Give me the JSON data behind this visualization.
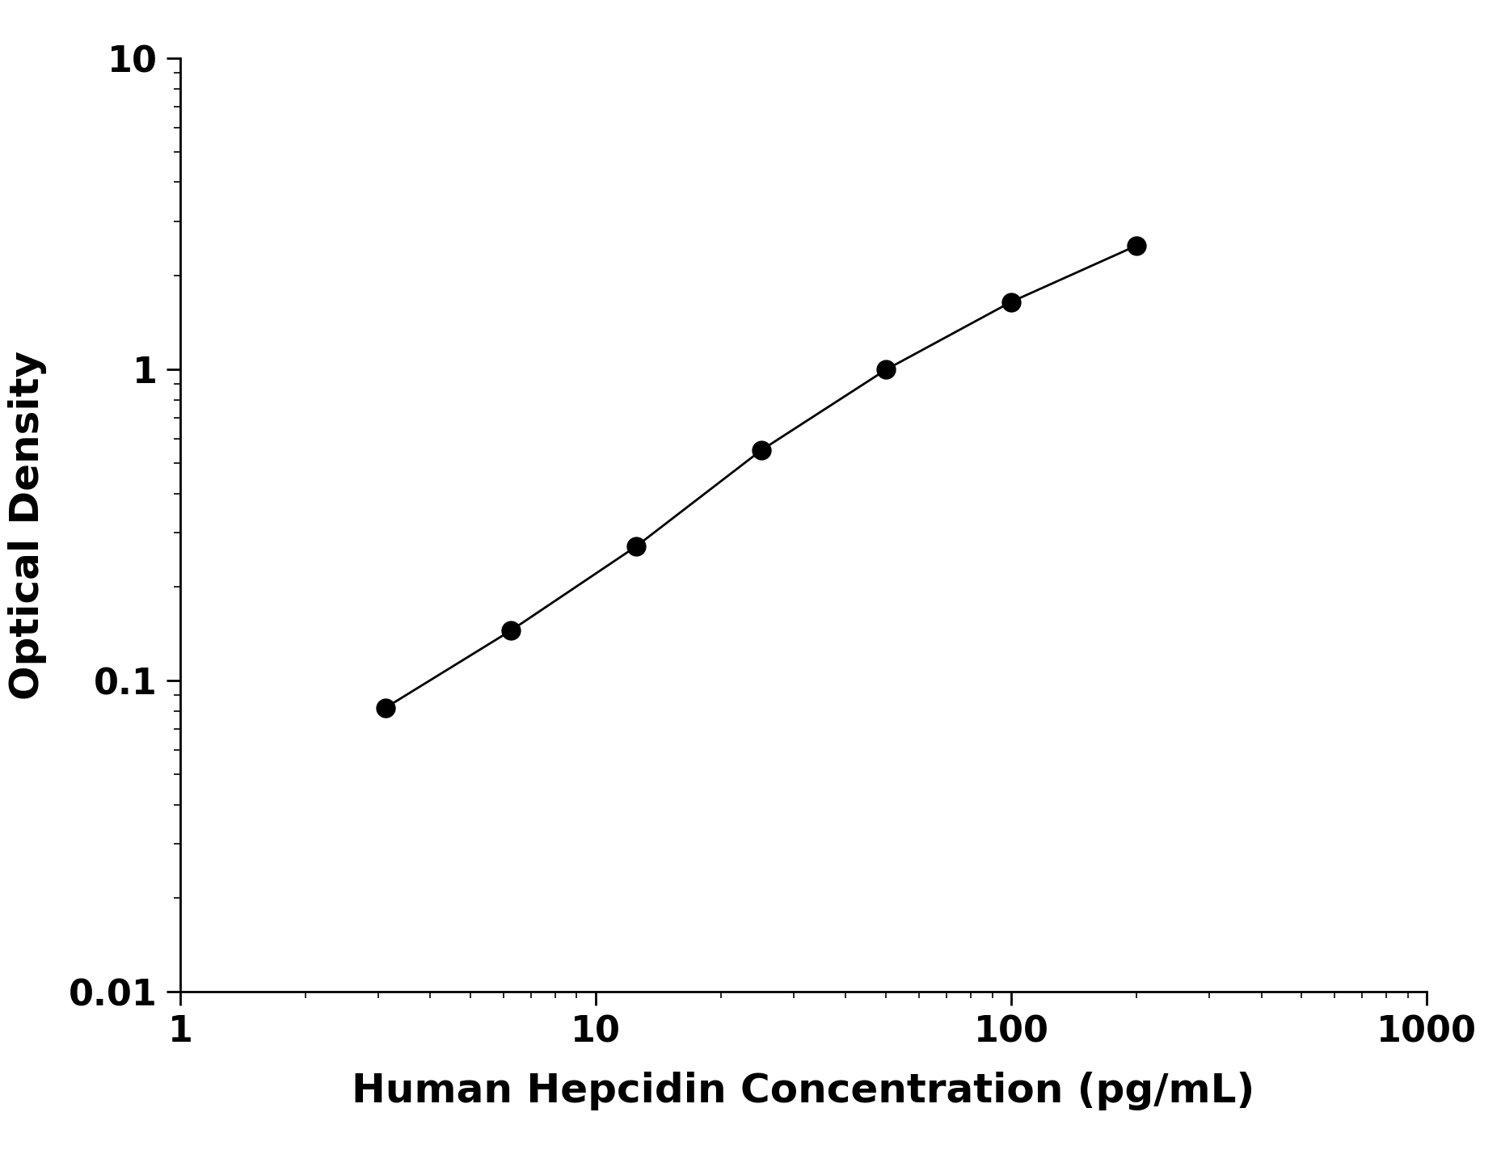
{
  "x_data": [
    3.125,
    6.25,
    12.5,
    25,
    50,
    100,
    200
  ],
  "y_data": [
    0.082,
    0.145,
    0.27,
    0.55,
    1.0,
    1.65,
    2.5
  ],
  "xlim": [
    1,
    1000
  ],
  "ylim": [
    0.01,
    10
  ],
  "xlabel": "Human Hepcidin Concentration (pg/mL)",
  "ylabel": "Optical Density",
  "line_color": "#000000",
  "marker_color": "#000000",
  "marker_size": 16,
  "line_width": 2.0,
  "background_color": "#ffffff",
  "xlabel_fontsize": 36,
  "ylabel_fontsize": 36,
  "tick_fontsize": 32,
  "ytick_labels": [
    "0.01",
    "0.1",
    "1",
    "10"
  ],
  "ytick_values": [
    0.01,
    0.1,
    1,
    10
  ],
  "xtick_labels": [
    "1",
    "10",
    "100",
    "1000"
  ],
  "xtick_values": [
    1,
    10,
    100,
    1000
  ]
}
